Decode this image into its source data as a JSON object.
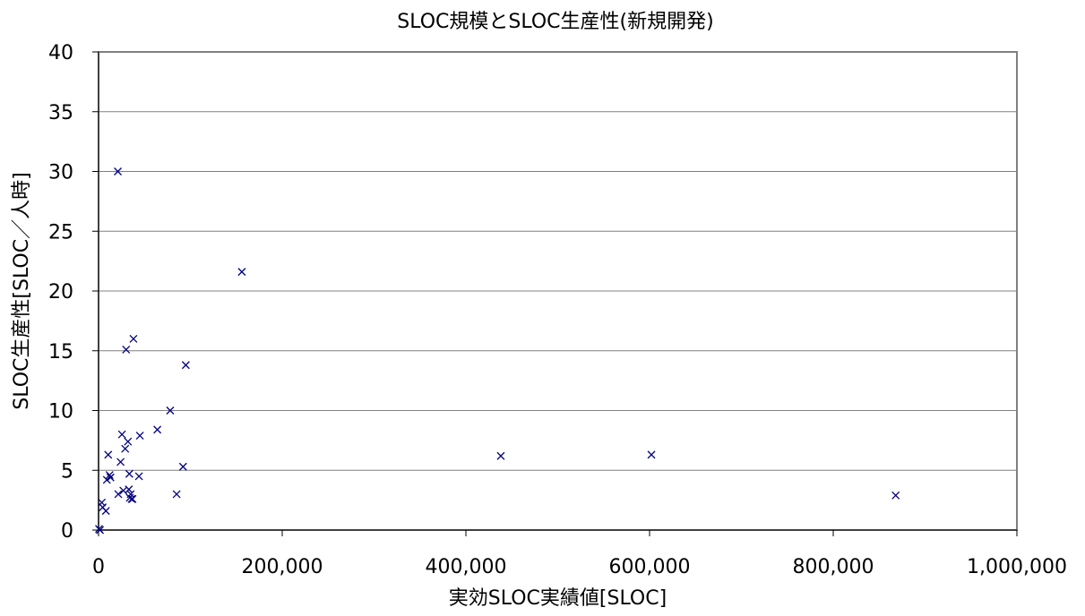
{
  "chart_data": {
    "type": "scatter",
    "title": "SLOC規模とSLOC生産性(新規開発)",
    "xlabel": "実効SLOC実績値[SLOC]",
    "ylabel": "SLOC生産性[SLOC／人時]",
    "xlim": [
      0,
      1000000
    ],
    "ylim": [
      0,
      40
    ],
    "x_ticks": [
      0,
      200000,
      400000,
      600000,
      800000,
      1000000
    ],
    "x_tick_labels": [
      "0",
      "200,000",
      "400,000",
      "600,000",
      "800,000",
      "1,000,000"
    ],
    "y_ticks": [
      0,
      5,
      10,
      15,
      20,
      25,
      30,
      35,
      40
    ],
    "y_tick_labels": [
      "0",
      "5",
      "10",
      "15",
      "20",
      "25",
      "30",
      "35",
      "40"
    ],
    "grid": "horizontal",
    "marker": "x",
    "marker_color": "#000080",
    "points": [
      {
        "x": 500,
        "y": 0.1
      },
      {
        "x": 1500,
        "y": 0.0
      },
      {
        "x": 3500,
        "y": 2.3
      },
      {
        "x": 4500,
        "y": 1.9
      },
      {
        "x": 8000,
        "y": 1.6
      },
      {
        "x": 9000,
        "y": 4.2
      },
      {
        "x": 10500,
        "y": 6.3
      },
      {
        "x": 12000,
        "y": 4.6
      },
      {
        "x": 13000,
        "y": 4.4
      },
      {
        "x": 21000,
        "y": 30.0
      },
      {
        "x": 21500,
        "y": 3.0
      },
      {
        "x": 24000,
        "y": 5.7
      },
      {
        "x": 25500,
        "y": 8.0
      },
      {
        "x": 27000,
        "y": 3.3
      },
      {
        "x": 29000,
        "y": 6.8
      },
      {
        "x": 30000,
        "y": 15.1
      },
      {
        "x": 32000,
        "y": 7.4
      },
      {
        "x": 33000,
        "y": 3.4
      },
      {
        "x": 33500,
        "y": 4.7
      },
      {
        "x": 34000,
        "y": 2.7
      },
      {
        "x": 35000,
        "y": 3.0
      },
      {
        "x": 36000,
        "y": 2.6
      },
      {
        "x": 37000,
        "y": 2.6
      },
      {
        "x": 38000,
        "y": 16.0
      },
      {
        "x": 44000,
        "y": 4.5
      },
      {
        "x": 45000,
        "y": 7.9
      },
      {
        "x": 64000,
        "y": 8.4
      },
      {
        "x": 78000,
        "y": 10.0
      },
      {
        "x": 85000,
        "y": 3.0
      },
      {
        "x": 92000,
        "y": 5.3
      },
      {
        "x": 95000,
        "y": 13.8
      },
      {
        "x": 156000,
        "y": 21.6
      },
      {
        "x": 438000,
        "y": 6.2
      },
      {
        "x": 602000,
        "y": 6.3
      },
      {
        "x": 868000,
        "y": 2.9
      }
    ]
  }
}
